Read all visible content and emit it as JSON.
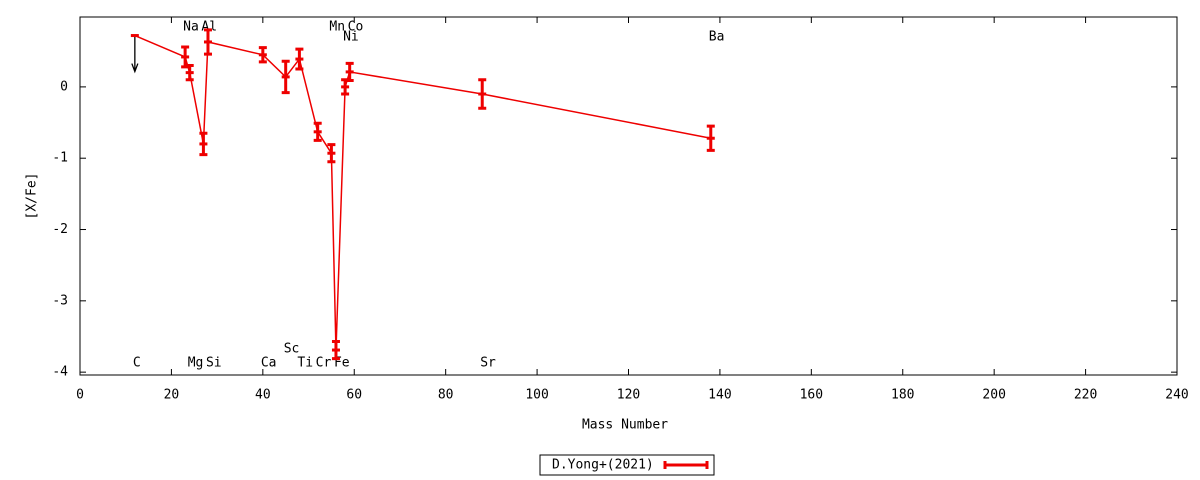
{
  "chart_data": {
    "type": "errorbar",
    "xlabel": "Mass Number",
    "ylabel": "[X/Fe]",
    "xlim": [
      0,
      240
    ],
    "ylim": [
      -4.04,
      0.98
    ],
    "xticks": [
      0,
      20,
      40,
      60,
      80,
      100,
      120,
      140,
      160,
      180,
      200,
      220,
      240
    ],
    "yticks": [
      -4,
      -3,
      -2,
      -1,
      0
    ],
    "x": [
      12,
      23,
      24,
      27,
      28,
      40,
      45,
      48,
      52,
      55,
      56,
      58,
      59,
      88,
      138
    ],
    "labels": [
      "C",
      "Na",
      "Mg",
      "Al",
      "Si",
      "Ca",
      "Sc",
      "Ti",
      "Cr",
      "Mn",
      "Fe",
      "Ni",
      "Co",
      "Sr",
      "Ba"
    ],
    "series": [
      {
        "name": "D.Yong+(2021)",
        "color": "#ee0000",
        "values": [
          0.72,
          0.42,
          0.2,
          -0.8,
          0.63,
          0.45,
          0.14,
          0.39,
          -0.63,
          -0.93,
          -3.69,
          0.0,
          0.21,
          -0.1,
          -0.72
        ],
        "errors": [
          null,
          0.14,
          0.1,
          0.15,
          0.17,
          0.1,
          0.22,
          0.14,
          0.12,
          0.12,
          0.12,
          0.1,
          0.12,
          0.2,
          0.17
        ],
        "upper_limits": [
          true,
          false,
          false,
          false,
          false,
          false,
          false,
          false,
          false,
          false,
          false,
          false,
          false,
          false,
          false
        ]
      }
    ],
    "legend": "bottom-center"
  }
}
